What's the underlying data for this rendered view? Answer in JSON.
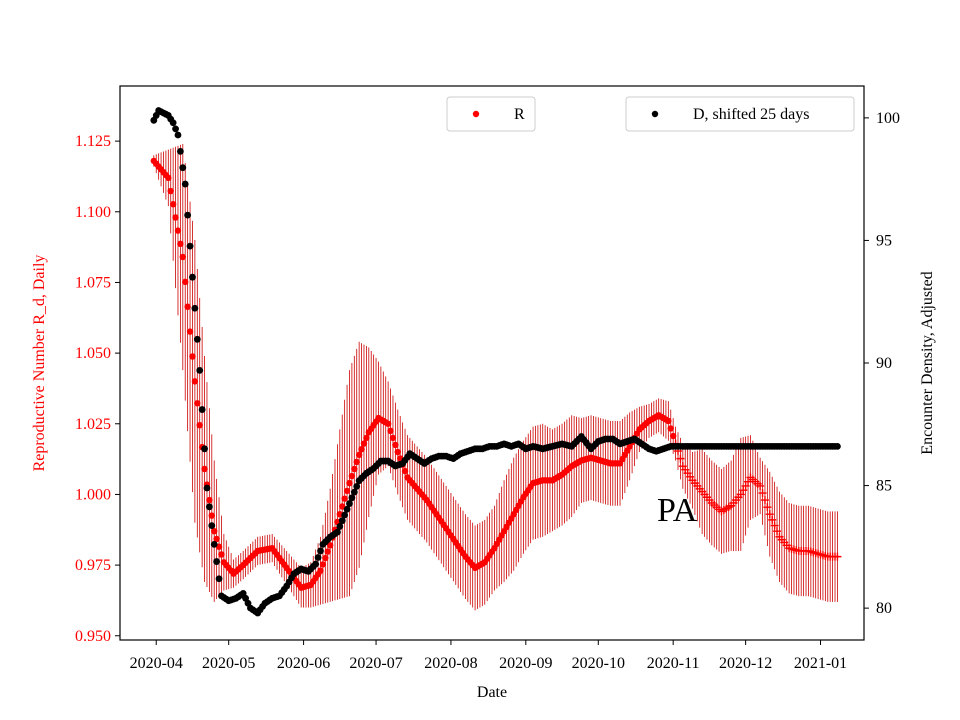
{
  "chart_data": {
    "type": "scatter",
    "xlabel": "Date",
    "ylabel_left": "Reproductive Number R_d, Daily",
    "ylabel_right": "Encounter Density, Adjusted",
    "annotation": "PA",
    "x_ticks": [
      "2020-04",
      "2020-05",
      "2020-06",
      "2020-07",
      "2020-08",
      "2020-09",
      "2020-10",
      "2020-11",
      "2020-12",
      "2021-01"
    ],
    "x_tick_days": [
      0,
      30,
      61,
      91,
      122,
      153,
      183,
      214,
      244,
      275
    ],
    "xlim_days": [
      -15,
      293
    ],
    "y_left_ticks": [
      "0.950",
      "0.975",
      "1.000",
      "1.025",
      "1.050",
      "1.075",
      "1.100",
      "1.125"
    ],
    "y_left_lim": [
      0.9485,
      1.1445
    ],
    "y_right_ticks": [
      "80",
      "85",
      "90",
      "95",
      "100"
    ],
    "y_right_lim": [
      78.7,
      101.3
    ],
    "colors": {
      "R": "#ff0000",
      "D": "#000000",
      "left_axis": "#ff0000"
    },
    "legend": {
      "R_label": "R",
      "D_label": "D, shifted 25 days"
    },
    "series": [
      {
        "name": "R",
        "axis": "left",
        "marker_change_day": 215,
        "x_days": [
          -1,
          5,
          11,
          16,
          20,
          24,
          28,
          32,
          36,
          42,
          48,
          54,
          60,
          64,
          68,
          72,
          76,
          80,
          84,
          88,
          92,
          96,
          100,
          104,
          108,
          112,
          116,
          120,
          124,
          128,
          132,
          136,
          140,
          144,
          148,
          152,
          156,
          160,
          164,
          168,
          172,
          176,
          180,
          184,
          188,
          192,
          196,
          200,
          204,
          208,
          212,
          215,
          218,
          222,
          226,
          230,
          234,
          238,
          242,
          246,
          250,
          254,
          258,
          262,
          266,
          270,
          274,
          278,
          282
        ],
        "values": [
          1.118,
          1.112,
          1.084,
          1.04,
          1.009,
          0.987,
          0.976,
          0.972,
          0.975,
          0.98,
          0.981,
          0.974,
          0.967,
          0.968,
          0.973,
          0.982,
          0.993,
          1.004,
          1.014,
          1.022,
          1.027,
          1.025,
          1.015,
          1.006,
          1.002,
          0.998,
          0.993,
          0.988,
          0.983,
          0.978,
          0.974,
          0.976,
          0.981,
          0.987,
          0.993,
          0.999,
          1.004,
          1.005,
          1.005,
          1.007,
          1.01,
          1.012,
          1.013,
          1.012,
          1.011,
          1.011,
          1.017,
          1.023,
          1.026,
          1.028,
          1.026,
          1.018,
          1.01,
          1.005,
          1.001,
          0.997,
          0.994,
          0.996,
          1.0,
          1.006,
          1.003,
          0.993,
          0.985,
          0.981,
          0.98,
          0.98,
          0.979,
          0.978,
          0.978
        ],
        "error_halfwidths": [
          0.002,
          0.01,
          0.04,
          0.05,
          0.04,
          0.025,
          0.01,
          0.005,
          0.005,
          0.005,
          0.005,
          0.006,
          0.007,
          0.008,
          0.012,
          0.02,
          0.03,
          0.04,
          0.04,
          0.03,
          0.02,
          0.015,
          0.015,
          0.015,
          0.015,
          0.015,
          0.015,
          0.015,
          0.015,
          0.015,
          0.015,
          0.015,
          0.015,
          0.018,
          0.02,
          0.02,
          0.02,
          0.02,
          0.018,
          0.018,
          0.018,
          0.015,
          0.015,
          0.015,
          0.015,
          0.015,
          0.012,
          0.008,
          0.006,
          0.006,
          0.007,
          0.006,
          0.008,
          0.01,
          0.015,
          0.015,
          0.015,
          0.016,
          0.02,
          0.015,
          0.01,
          0.015,
          0.016,
          0.016,
          0.016,
          0.016,
          0.016,
          0.016,
          0.016
        ]
      },
      {
        "name": "D, shifted 25 days",
        "axis": "right",
        "x_days": [
          -1,
          1,
          3,
          5,
          7,
          9,
          12,
          15,
          18,
          21,
          24,
          27,
          30,
          33,
          36,
          39,
          42,
          45,
          48,
          51,
          54,
          57,
          60,
          63,
          66,
          69,
          72,
          75,
          78,
          81,
          84,
          87,
          90,
          93,
          96,
          99,
          102,
          105,
          108,
          111,
          114,
          117,
          120,
          123,
          126,
          129,
          132,
          135,
          138,
          141,
          144,
          147,
          150,
          153,
          156,
          160,
          164,
          168,
          172,
          176,
          180,
          183,
          186,
          189,
          192,
          195,
          198,
          201,
          204,
          207,
          210,
          213,
          216,
          219,
          222,
          225,
          228,
          231,
          234,
          237,
          240,
          243,
          246,
          249,
          252,
          255,
          258,
          261,
          264,
          267,
          270,
          273,
          276,
          279,
          282
        ],
        "values": [
          99.9,
          100.3,
          100.2,
          100.1,
          99.8,
          99.3,
          97.3,
          93.5,
          89.7,
          84.9,
          82.6,
          80.5,
          80.3,
          80.4,
          80.6,
          80.0,
          79.8,
          80.2,
          80.4,
          80.5,
          80.9,
          81.4,
          81.6,
          81.5,
          81.8,
          82.6,
          82.9,
          83.1,
          83.8,
          84.5,
          85.2,
          85.5,
          85.7,
          86.0,
          86.0,
          85.8,
          85.9,
          86.3,
          86.1,
          85.9,
          86.1,
          86.2,
          86.2,
          86.1,
          86.3,
          86.4,
          86.5,
          86.5,
          86.6,
          86.6,
          86.7,
          86.6,
          86.7,
          86.5,
          86.6,
          86.5,
          86.6,
          86.7,
          86.6,
          87.0,
          86.5,
          86.8,
          86.9,
          86.9,
          86.7,
          86.8,
          86.9,
          86.7,
          86.5,
          86.4,
          86.5,
          86.6,
          86.6,
          86.6,
          86.6,
          86.6,
          86.6,
          86.6,
          86.6,
          86.6,
          86.6,
          86.6,
          86.6,
          86.6,
          86.6,
          86.6,
          86.6,
          86.6,
          86.6,
          86.6,
          86.6,
          86.6,
          86.6,
          86.6,
          86.6
        ]
      }
    ]
  }
}
